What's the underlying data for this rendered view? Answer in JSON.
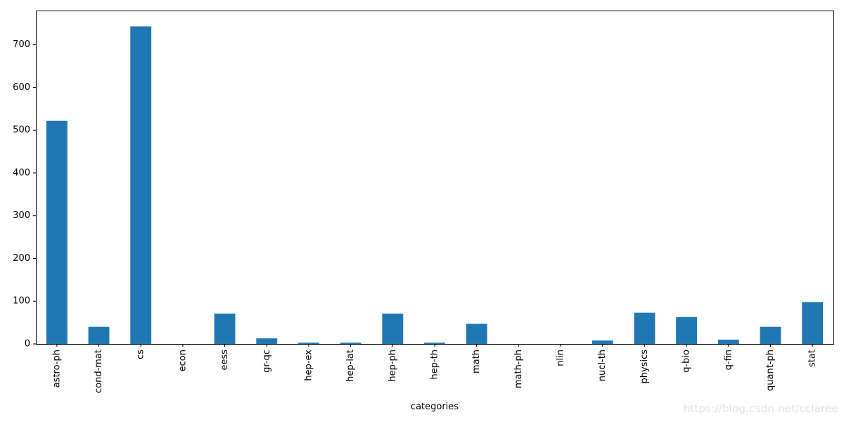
{
  "chart_data": {
    "type": "bar",
    "title": "",
    "xlabel": "categories",
    "ylabel": "",
    "categories": [
      "astro-ph",
      "cond-mat",
      "cs",
      "econ",
      "eess",
      "gr-qc",
      "hep-ex",
      "hep-lat",
      "hep-ph",
      "hep-th",
      "math",
      "math-ph",
      "nlin",
      "nucl-th",
      "physics",
      "q-bio",
      "q-fin",
      "quant-ph",
      "stat"
    ],
    "values": [
      522,
      40,
      743,
      0,
      71,
      13,
      3,
      3,
      71,
      3,
      47,
      0,
      0,
      8,
      73,
      63,
      10,
      40,
      98
    ],
    "ylim": [
      0,
      780
    ],
    "yticks": [
      0,
      100,
      200,
      300,
      400,
      500,
      600,
      700
    ],
    "bar_color": "#1f77b4",
    "grid": false,
    "legend": "none"
  },
  "watermark": "https://blog.csdn.net/cclaree"
}
